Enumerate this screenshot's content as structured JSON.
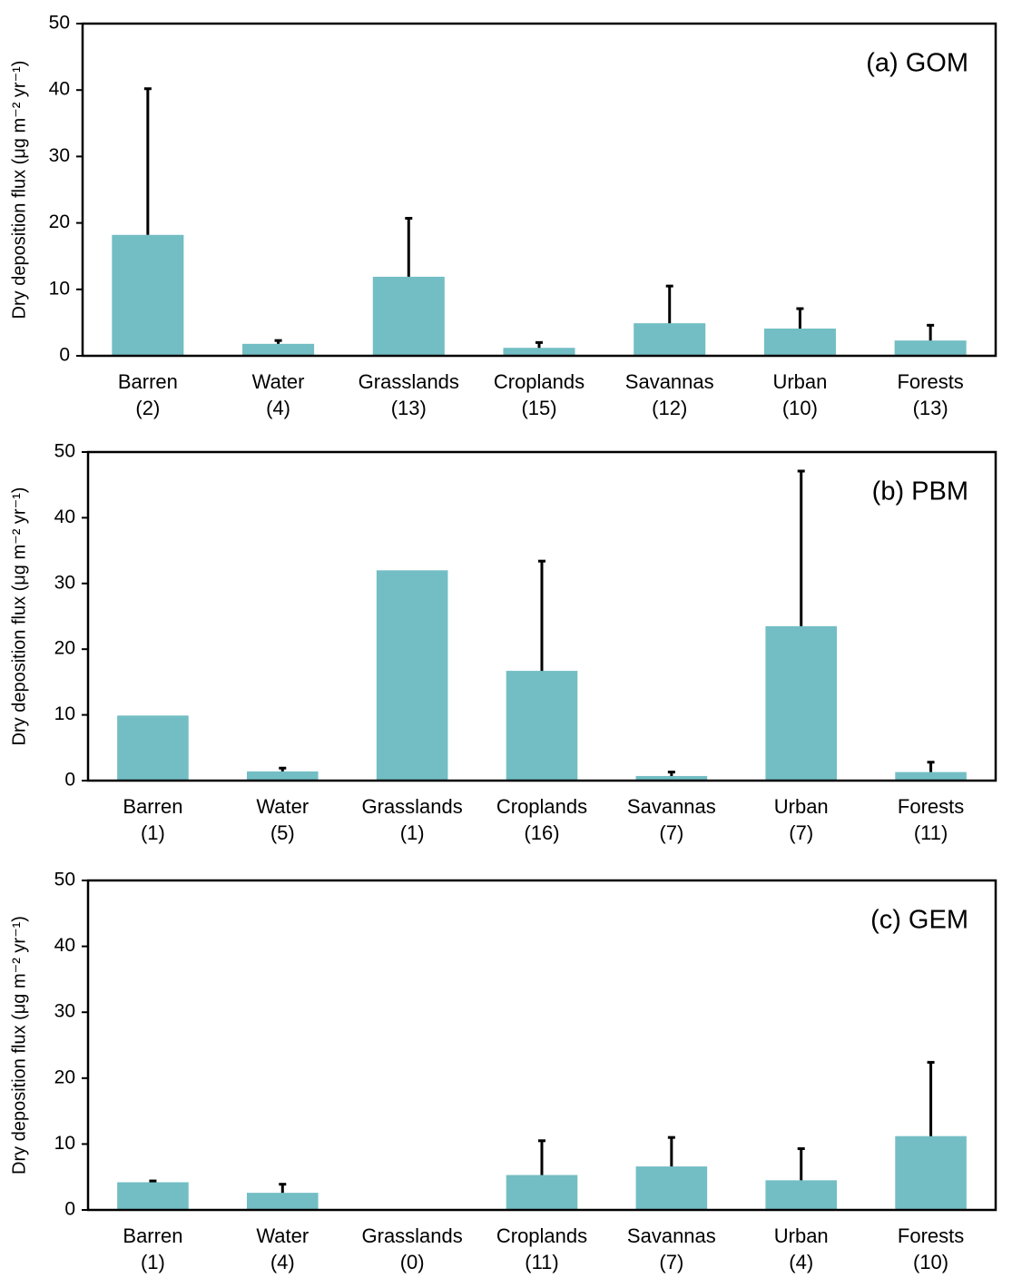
{
  "chart_data": [
    {
      "type": "bar",
      "annotation": "(a) GOM",
      "y_label": "Dry deposition flux (μg m⁻² yr⁻¹)",
      "categories": [
        "Barren",
        "Water",
        "Grasslands",
        "Croplands",
        "Savannas",
        "Urban",
        "Forests"
      ],
      "n_labels": [
        "(2)",
        "(4)",
        "(13)",
        "(15)",
        "(12)",
        "(10)",
        "(13)"
      ],
      "values": [
        18.2,
        1.8,
        11.9,
        1.2,
        4.9,
        4.1,
        2.3
      ],
      "errors": [
        22.0,
        0.5,
        8.8,
        0.8,
        5.6,
        3.0,
        2.3
      ],
      "color": "#72bec4",
      "ylim": [
        0,
        50
      ],
      "yticks": [
        0,
        10,
        20,
        30,
        40,
        50
      ]
    },
    {
      "type": "bar",
      "annotation": "(b) PBM",
      "y_label": "Dry deposition flux (μg m⁻² yr⁻¹)",
      "categories": [
        "Barren",
        "Water",
        "Grasslands",
        "Croplands",
        "Savannas",
        "Urban",
        "Forests"
      ],
      "n_labels": [
        "(1)",
        "(5)",
        "(1)",
        "(16)",
        "(7)",
        "(7)",
        "(11)"
      ],
      "values": [
        9.9,
        1.4,
        32.0,
        16.7,
        0.7,
        23.5,
        1.3
      ],
      "errors": [
        null,
        0.5,
        null,
        16.7,
        0.6,
        23.6,
        1.5
      ],
      "color": "#72bec4",
      "ylim": [
        0,
        50
      ],
      "yticks": [
        0,
        10,
        20,
        30,
        40,
        50
      ]
    },
    {
      "type": "bar",
      "annotation": "(c) GEM",
      "y_label": "Dry deposition flux (μg m⁻² yr⁻¹)",
      "categories": [
        "Barren",
        "Water",
        "Grasslands",
        "Croplands",
        "Savannas",
        "Urban",
        "Forests"
      ],
      "n_labels": [
        "(1)",
        "(4)",
        "(0)",
        "(11)",
        "(7)",
        "(4)",
        "(10)"
      ],
      "values": [
        4.2,
        2.6,
        null,
        5.3,
        6.6,
        4.5,
        11.2
      ],
      "errors": [
        0.2,
        1.3,
        null,
        5.2,
        4.4,
        4.8,
        11.2
      ],
      "color": "#72bec4",
      "ylim": [
        0,
        50
      ],
      "yticks": [
        0,
        10,
        20,
        30,
        40,
        50
      ]
    }
  ]
}
